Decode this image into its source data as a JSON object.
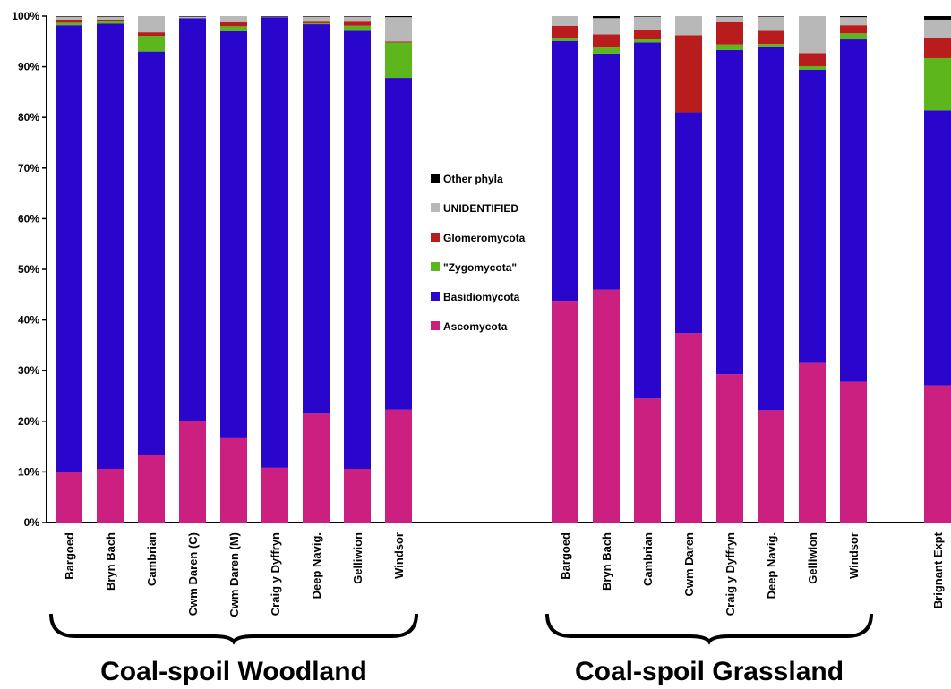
{
  "chart_data": {
    "type": "bar",
    "stacked": true,
    "ylim": [
      0,
      100
    ],
    "yticks": [
      "0%",
      "10%",
      "20%",
      "30%",
      "40%",
      "50%",
      "60%",
      "70%",
      "80%",
      "90%",
      "100%"
    ],
    "categories": [
      "Bargoed",
      "Bryn Bach",
      "Cambrian",
      "Cwm Daren (C)",
      "Cwm Daren (M)",
      "Craig y Dyffryn",
      "Deep Navig.",
      "Gelliwion",
      "Windsor",
      "Bargoed",
      "Bryn Bach",
      "Cambrian",
      "Cwm Daren",
      "Craig y Dyffryn",
      "Deep Navig.",
      "Gelliwion",
      "Windsor",
      "Brignant Expt"
    ],
    "groups": [
      {
        "label": "Coal-spoil Woodland",
        "start": 0,
        "end": 8
      },
      {
        "label": "Coal-spoil Grassland",
        "start": 9,
        "end": 16
      }
    ],
    "series": [
      {
        "name": "Ascomycota",
        "color": "#cc2080",
        "values": [
          10.0,
          10.6,
          13.4,
          20.1,
          16.8,
          10.8,
          21.5,
          10.6,
          22.3,
          43.8,
          46.0,
          24.5,
          37.4,
          29.3,
          22.2,
          31.5,
          27.8,
          27.1
        ]
      },
      {
        "name": "Basidiomycota",
        "color": "#2a06cc",
        "values": [
          88.2,
          87.9,
          79.6,
          79.5,
          80.2,
          89.0,
          76.9,
          86.5,
          65.5,
          51.3,
          46.6,
          70.3,
          43.6,
          64.0,
          71.8,
          57.9,
          67.6,
          54.3
        ]
      },
      {
        "name": "\"Zygomycota\"",
        "color": "#5cb61c",
        "values": [
          0.5,
          0.6,
          3.1,
          0.0,
          1.0,
          0.0,
          0.2,
          1.0,
          7.0,
          0.6,
          1.2,
          0.6,
          0.0,
          1.1,
          0.5,
          0.7,
          1.2,
          10.3
        ]
      },
      {
        "name": "Glomeromycota",
        "color": "#b81c1c",
        "values": [
          0.6,
          0.2,
          0.7,
          0.0,
          0.8,
          0.0,
          0.3,
          0.8,
          0.2,
          2.4,
          2.6,
          1.9,
          15.2,
          4.4,
          2.6,
          2.6,
          1.6,
          4.0
        ]
      },
      {
        "name": "UNIDENTIFIED",
        "color": "#b8b8b8",
        "values": [
          0.6,
          0.6,
          3.2,
          0.3,
          1.2,
          0.1,
          1.0,
          1.0,
          4.8,
          1.9,
          3.2,
          2.6,
          3.8,
          1.1,
          2.8,
          7.3,
          1.6,
          3.6
        ]
      },
      {
        "name": "Other phyla",
        "color": "#000000",
        "values": [
          0.1,
          0.1,
          0.0,
          0.1,
          0.0,
          0.1,
          0.1,
          0.1,
          0.2,
          0.0,
          0.4,
          0.1,
          0.0,
          0.1,
          0.1,
          0.0,
          0.2,
          0.7
        ]
      }
    ],
    "legend_order": [
      "Other phyla",
      "UNIDENTIFIED",
      "Glomeromycota",
      "\"Zygomycota\"",
      "Basidiomycota",
      "Ascomycota"
    ],
    "legend_position": "center",
    "grid": false
  }
}
